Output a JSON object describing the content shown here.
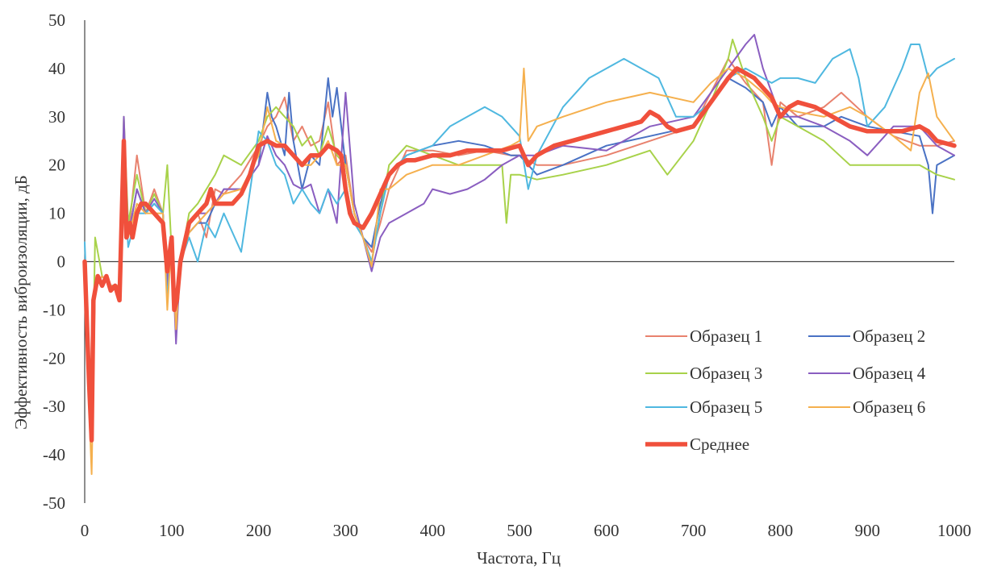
{
  "chart_data": {
    "type": "line",
    "title": "",
    "xlabel": "Частота, Гц",
    "ylabel": "Эффективность виброизоляции, дБ",
    "xlim": [
      0,
      1000
    ],
    "ylim": [
      -50,
      50
    ],
    "x_ticks": [
      "0",
      "100",
      "200",
      "300",
      "400",
      "500",
      "600",
      "700",
      "800",
      "900",
      "1000"
    ],
    "y_ticks": [
      "50",
      "40",
      "30",
      "20",
      "10",
      "0",
      "-10",
      "-20",
      "-30",
      "-40",
      "-50"
    ],
    "grid": false,
    "legend_position": "bottom-right",
    "series": [
      {
        "name": "Образец 1",
        "color": "#e8826e",
        "x": [
          0,
          5,
          8,
          12,
          20,
          30,
          40,
          45,
          50,
          60,
          70,
          80,
          90,
          95,
          100,
          105,
          110,
          120,
          130,
          140,
          150,
          160,
          180,
          200,
          210,
          220,
          230,
          240,
          250,
          260,
          270,
          280,
          290,
          300,
          310,
          320,
          330,
          340,
          350,
          370,
          400,
          430,
          460,
          490,
          500,
          520,
          550,
          600,
          650,
          700,
          720,
          740,
          760,
          780,
          790,
          800,
          820,
          850,
          870,
          900,
          930,
          960,
          980,
          1000
        ],
        "y": [
          0,
          -28,
          -35,
          -5,
          -3,
          -5,
          -5,
          22,
          5,
          22,
          10,
          15,
          10,
          -5,
          5,
          -14,
          0,
          8,
          10,
          5,
          15,
          14,
          18,
          24,
          28,
          30,
          34,
          25,
          28,
          24,
          25,
          33,
          20,
          22,
          10,
          5,
          2,
          8,
          15,
          23,
          23,
          22,
          23,
          22,
          22,
          20,
          20,
          22,
          25,
          28,
          35,
          42,
          37,
          33,
          20,
          33,
          30,
          32,
          35,
          30,
          26,
          24,
          24,
          25
        ]
      },
      {
        "name": "Образец 2",
        "color": "#4a72c4",
        "x": [
          0,
          5,
          8,
          12,
          20,
          30,
          40,
          45,
          50,
          60,
          70,
          80,
          90,
          95,
          100,
          105,
          110,
          120,
          130,
          140,
          150,
          160,
          180,
          200,
          210,
          215,
          220,
          230,
          235,
          240,
          250,
          260,
          270,
          280,
          285,
          290,
          295,
          300,
          310,
          320,
          330,
          340,
          350,
          370,
          400,
          430,
          460,
          490,
          500,
          520,
          550,
          600,
          650,
          700,
          720,
          740,
          760,
          780,
          790,
          800,
          820,
          850,
          870,
          900,
          930,
          960,
          970,
          975,
          980,
          1000
        ],
        "y": [
          0,
          -25,
          -33,
          -5,
          -3,
          -5,
          -5,
          20,
          5,
          15,
          10,
          12,
          10,
          -5,
          5,
          -15,
          0,
          6,
          8,
          8,
          12,
          15,
          15,
          20,
          35,
          30,
          28,
          22,
          35,
          25,
          15,
          22,
          20,
          38,
          30,
          36,
          28,
          20,
          10,
          5,
          3,
          12,
          18,
          22,
          24,
          25,
          24,
          22,
          22,
          18,
          20,
          24,
          26,
          28,
          33,
          38,
          36,
          33,
          28,
          32,
          28,
          28,
          30,
          28,
          27,
          26,
          20,
          10,
          20,
          22
        ]
      },
      {
        "name": "Образец 3",
        "color": "#a8d24a",
        "x": [
          0,
          5,
          8,
          12,
          20,
          30,
          40,
          45,
          50,
          60,
          70,
          80,
          90,
          95,
          100,
          105,
          110,
          120,
          130,
          140,
          150,
          160,
          180,
          200,
          210,
          220,
          230,
          240,
          250,
          260,
          270,
          280,
          290,
          300,
          310,
          320,
          330,
          340,
          350,
          370,
          400,
          430,
          460,
          480,
          485,
          490,
          500,
          520,
          550,
          600,
          650,
          670,
          700,
          720,
          740,
          745,
          760,
          780,
          790,
          800,
          820,
          850,
          880,
          900,
          930,
          960,
          980,
          1000
        ],
        "y": [
          0,
          -28,
          -35,
          5,
          -3,
          -5,
          -5,
          30,
          8,
          18,
          10,
          14,
          10,
          20,
          2,
          -10,
          0,
          10,
          12,
          15,
          18,
          22,
          20,
          25,
          30,
          32,
          30,
          28,
          24,
          26,
          22,
          28,
          22,
          20,
          10,
          5,
          0,
          10,
          20,
          24,
          22,
          20,
          20,
          20,
          8,
          18,
          18,
          17,
          18,
          20,
          23,
          18,
          25,
          33,
          42,
          46,
          38,
          30,
          25,
          30,
          28,
          25,
          20,
          20,
          20,
          20,
          18,
          17
        ]
      },
      {
        "name": "Образец 4",
        "color": "#8a5ec0",
        "x": [
          0,
          5,
          8,
          12,
          20,
          30,
          40,
          45,
          50,
          60,
          70,
          80,
          90,
          95,
          100,
          105,
          110,
          120,
          130,
          140,
          150,
          160,
          180,
          200,
          210,
          220,
          230,
          240,
          250,
          260,
          270,
          280,
          290,
          300,
          310,
          320,
          330,
          340,
          350,
          370,
          390,
          400,
          420,
          440,
          460,
          480,
          500,
          520,
          550,
          600,
          650,
          700,
          720,
          740,
          760,
          770,
          780,
          790,
          800,
          820,
          850,
          880,
          900,
          930,
          960,
          980,
          1000
        ],
        "y": [
          0,
          -28,
          -35,
          -5,
          -3,
          -5,
          -5,
          30,
          5,
          15,
          10,
          13,
          10,
          -5,
          5,
          -17,
          0,
          8,
          10,
          10,
          12,
          15,
          15,
          20,
          26,
          22,
          20,
          16,
          15,
          16,
          10,
          15,
          8,
          35,
          12,
          5,
          -2,
          5,
          8,
          10,
          12,
          15,
          14,
          15,
          17,
          20,
          22,
          22,
          24,
          23,
          28,
          30,
          35,
          40,
          45,
          47,
          40,
          35,
          30,
          30,
          28,
          25,
          22,
          28,
          28,
          24,
          22
        ]
      },
      {
        "name": "Образец 5",
        "color": "#4fb8e0",
        "x": [
          0,
          5,
          8,
          12,
          20,
          30,
          40,
          45,
          50,
          60,
          70,
          80,
          90,
          95,
          100,
          105,
          110,
          120,
          130,
          140,
          150,
          160,
          180,
          200,
          210,
          220,
          230,
          240,
          250,
          260,
          270,
          280,
          290,
          300,
          310,
          320,
          330,
          340,
          350,
          370,
          400,
          420,
          440,
          460,
          480,
          500,
          510,
          520,
          550,
          580,
          600,
          620,
          640,
          660,
          680,
          700,
          720,
          740,
          760,
          780,
          790,
          800,
          820,
          840,
          860,
          880,
          890,
          900,
          920,
          940,
          950,
          960,
          970,
          980,
          1000
        ],
        "y": [
          4,
          -20,
          -30,
          -5,
          -3,
          -5,
          -5,
          20,
          3,
          10,
          10,
          12,
          10,
          -8,
          5,
          -10,
          0,
          5,
          0,
          8,
          5,
          10,
          2,
          27,
          25,
          20,
          18,
          12,
          15,
          12,
          10,
          15,
          12,
          15,
          8,
          5,
          0,
          10,
          18,
          22,
          24,
          28,
          30,
          32,
          30,
          26,
          15,
          22,
          32,
          38,
          40,
          42,
          40,
          38,
          30,
          30,
          33,
          38,
          40,
          38,
          37,
          38,
          38,
          37,
          42,
          44,
          38,
          28,
          32,
          40,
          45,
          45,
          38,
          40,
          42
        ]
      },
      {
        "name": "Образец 6",
        "color": "#f5b04e",
        "x": [
          0,
          5,
          8,
          12,
          20,
          30,
          40,
          45,
          50,
          60,
          70,
          80,
          90,
          95,
          100,
          105,
          110,
          120,
          130,
          140,
          150,
          160,
          180,
          200,
          210,
          220,
          230,
          240,
          250,
          260,
          270,
          280,
          290,
          300,
          310,
          320,
          330,
          340,
          350,
          370,
          400,
          430,
          460,
          490,
          500,
          505,
          510,
          520,
          550,
          600,
          650,
          700,
          720,
          740,
          760,
          780,
          790,
          800,
          820,
          850,
          880,
          900,
          930,
          950,
          960,
          970,
          980,
          1000
        ],
        "y": [
          0,
          -30,
          -44,
          -5,
          -3,
          -5,
          -5,
          22,
          5,
          12,
          10,
          10,
          10,
          -10,
          5,
          -14,
          0,
          6,
          8,
          10,
          12,
          14,
          15,
          22,
          32,
          25,
          24,
          22,
          20,
          20,
          22,
          25,
          20,
          20,
          10,
          5,
          -1,
          15,
          15,
          18,
          20,
          20,
          22,
          24,
          25,
          40,
          25,
          28,
          30,
          33,
          35,
          33,
          37,
          40,
          38,
          35,
          33,
          32,
          31,
          30,
          32,
          30,
          26,
          23,
          35,
          39,
          30,
          25
        ]
      },
      {
        "name": "Среднее",
        "color": "#f0503c",
        "x": [
          0,
          5,
          8,
          10,
          15,
          20,
          25,
          30,
          35,
          40,
          45,
          48,
          52,
          55,
          60,
          65,
          70,
          80,
          90,
          95,
          100,
          103,
          106,
          110,
          120,
          130,
          140,
          145,
          150,
          160,
          170,
          180,
          190,
          200,
          210,
          220,
          230,
          240,
          250,
          260,
          270,
          280,
          290,
          295,
          300,
          305,
          310,
          320,
          330,
          340,
          350,
          360,
          370,
          380,
          400,
          420,
          440,
          460,
          480,
          500,
          510,
          520,
          540,
          560,
          580,
          600,
          620,
          640,
          650,
          660,
          670,
          680,
          700,
          720,
          740,
          750,
          760,
          770,
          780,
          790,
          800,
          810,
          820,
          840,
          860,
          880,
          900,
          920,
          940,
          960,
          970,
          980,
          1000
        ],
        "y": [
          0,
          -25,
          -37,
          -8,
          -3,
          -5,
          -3,
          -6,
          -5,
          -8,
          25,
          5,
          8,
          5,
          10,
          12,
          12,
          10,
          8,
          -2,
          5,
          -10,
          -8,
          0,
          8,
          10,
          12,
          15,
          12,
          12,
          12,
          14,
          18,
          24,
          25,
          24,
          24,
          22,
          20,
          22,
          22,
          24,
          23,
          22,
          15,
          10,
          8,
          7,
          10,
          14,
          18,
          20,
          21,
          21,
          22,
          22,
          23,
          23,
          23,
          24,
          20,
          22,
          24,
          25,
          26,
          27,
          28,
          29,
          31,
          30,
          28,
          27,
          28,
          33,
          38,
          40,
          39,
          38,
          36,
          34,
          30,
          32,
          33,
          32,
          30,
          28,
          27,
          27,
          27,
          28,
          27,
          25,
          24
        ]
      }
    ]
  }
}
